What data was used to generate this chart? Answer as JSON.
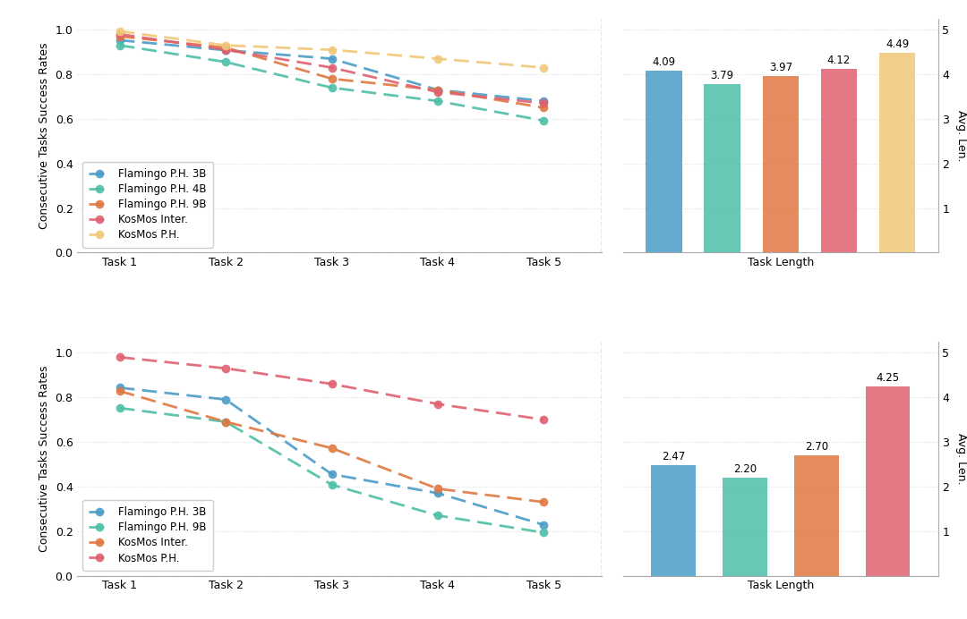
{
  "top": {
    "lines": [
      {
        "label": "Flamingo P.H. 3B",
        "color": "#4A9CC8",
        "values": [
          0.953,
          0.908,
          0.87,
          0.73,
          0.68
        ],
        "marker": "o"
      },
      {
        "label": "Flamingo P.H. 4B",
        "color": "#4DBFA8",
        "values": [
          0.93,
          0.855,
          0.74,
          0.68,
          0.592
        ],
        "marker": "o"
      },
      {
        "label": "Flamingo P.H. 9B",
        "color": "#E07840",
        "values": [
          0.97,
          0.92,
          0.78,
          0.73,
          0.65
        ],
        "marker": "o"
      },
      {
        "label": "KosMos Inter.",
        "color": "#E06070",
        "values": [
          0.98,
          0.91,
          0.83,
          0.72,
          0.67
        ],
        "marker": "o"
      },
      {
        "label": "KosMos P.H.",
        "color": "#F0C878",
        "values": [
          0.993,
          0.93,
          0.91,
          0.87,
          0.83
        ],
        "marker": "o"
      }
    ],
    "bars": [
      {
        "value": 4.09,
        "color": "#4A9CC8"
      },
      {
        "value": 3.79,
        "color": "#4DBFA8"
      },
      {
        "value": 3.97,
        "color": "#E07840"
      },
      {
        "value": 4.12,
        "color": "#E06070"
      },
      {
        "value": 4.49,
        "color": "#F0C878"
      }
    ],
    "bar_labels": [
      "4.09",
      "3.79",
      "3.97",
      "4.12",
      "4.49"
    ],
    "ylabel_left": "Consecutive Tasks Success Rates",
    "ylabel_right": "Avg. Len.",
    "ylim_left": [
      0.0,
      1.05
    ],
    "ylim_right": [
      0,
      5.25
    ],
    "yticks_left": [
      0.0,
      0.2,
      0.4,
      0.6,
      0.8,
      1.0
    ],
    "yticks_right": [
      1,
      2,
      3,
      4,
      5
    ],
    "xticks": [
      "Task 1",
      "Task 2",
      "Task 3",
      "Task 4",
      "Task 5"
    ]
  },
  "bottom": {
    "lines": [
      {
        "label": "Flamingo P.H. 3B",
        "color": "#4A9CC8",
        "values": [
          0.843,
          0.79,
          0.455,
          0.37,
          0.228
        ],
        "marker": "o"
      },
      {
        "label": "Flamingo P.H. 9B",
        "color": "#4DBFA8",
        "values": [
          0.752,
          0.69,
          0.408,
          0.27,
          0.193
        ],
        "marker": "o"
      },
      {
        "label": "KosMos Inter.",
        "color": "#E07840",
        "values": [
          0.828,
          0.69,
          0.572,
          0.39,
          0.33
        ],
        "marker": "o"
      },
      {
        "label": "KosMos P.H.",
        "color": "#E06070",
        "values": [
          0.98,
          0.93,
          0.86,
          0.77,
          0.7
        ],
        "marker": "o"
      }
    ],
    "bars": [
      {
        "value": 2.47,
        "color": "#4A9CC8"
      },
      {
        "value": 2.2,
        "color": "#4DBFA8"
      },
      {
        "value": 2.7,
        "color": "#E07840"
      },
      {
        "value": 4.25,
        "color": "#E06070"
      }
    ],
    "bar_labels": [
      "2.47",
      "2.20",
      "2.70",
      "4.25"
    ],
    "ylabel_left": "Consecutive Tasks Success Rates",
    "ylabel_right": "Avg. Len.",
    "ylim_left": [
      0.0,
      1.05
    ],
    "ylim_right": [
      0,
      5.25
    ],
    "yticks_left": [
      0.0,
      0.2,
      0.4,
      0.6,
      0.8,
      1.0
    ],
    "yticks_right": [
      1,
      2,
      3,
      4,
      5
    ],
    "xticks": [
      "Task 1",
      "Task 2",
      "Task 3",
      "Task 4",
      "Task 5"
    ]
  },
  "background_color": "#FFFFFF",
  "grid_color": "#DDDDDD",
  "line_width": 2.0,
  "marker_size": 7,
  "dashes": [
    6,
    3
  ]
}
